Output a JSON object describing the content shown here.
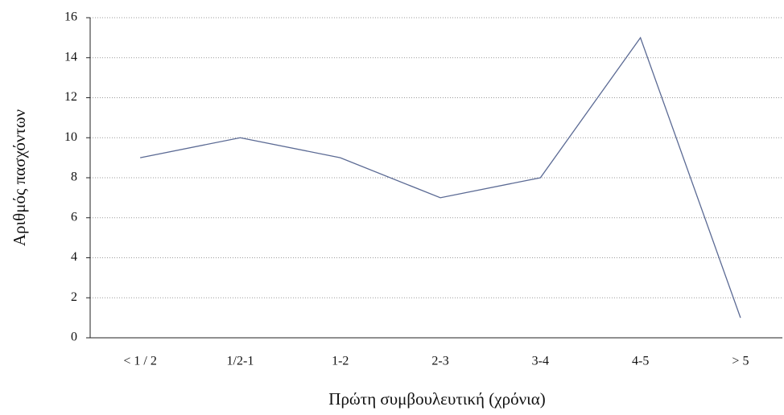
{
  "chart_data": {
    "type": "line",
    "x_label": "Πρώτη συμβουλευτική (χρόνια)",
    "y_label": "Αριθμός πασχόντων",
    "categories": [
      "< 1 / 2",
      "1/2-1",
      "1-2",
      "2-3",
      "3-4",
      "4-5",
      "> 5"
    ],
    "values": [
      9,
      10,
      9,
      7,
      8,
      15,
      1
    ],
    "color": "#5b6a94",
    "ylim": [
      0,
      16
    ],
    "yticks": [
      0,
      2,
      4,
      6,
      8,
      10,
      12,
      14,
      16
    ],
    "grid": true
  }
}
